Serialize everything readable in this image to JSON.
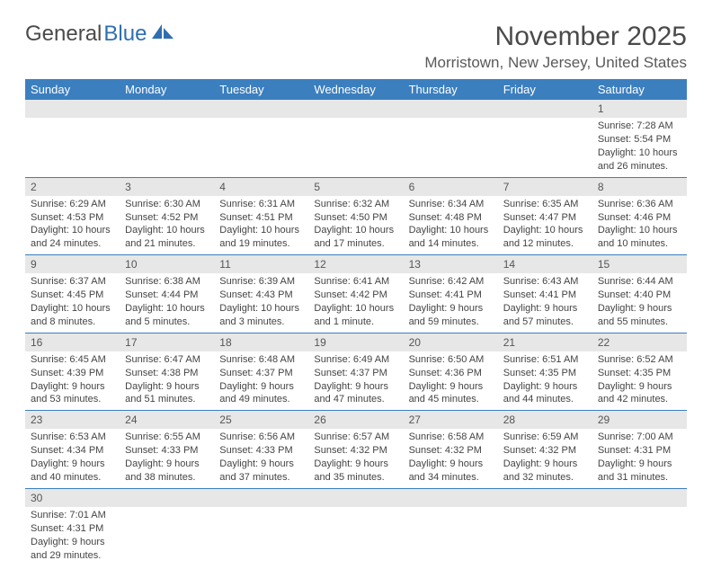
{
  "logo": {
    "text1": "General",
    "text2": "Blue"
  },
  "header": {
    "month": "November 2025",
    "location": "Morristown, New Jersey, United States"
  },
  "columns": [
    "Sunday",
    "Monday",
    "Tuesday",
    "Wednesday",
    "Thursday",
    "Friday",
    "Saturday"
  ],
  "colors": {
    "header_bg": "#3b7fbf",
    "header_fg": "#ffffff",
    "daynum_bg": "#e7e7e7",
    "border": "#3b7fbf",
    "text": "#444444",
    "logo_blue": "#2f6fb0"
  },
  "weeks": [
    [
      {
        "n": "",
        "sr": "",
        "ss": "",
        "dl": ""
      },
      {
        "n": "",
        "sr": "",
        "ss": "",
        "dl": ""
      },
      {
        "n": "",
        "sr": "",
        "ss": "",
        "dl": ""
      },
      {
        "n": "",
        "sr": "",
        "ss": "",
        "dl": ""
      },
      {
        "n": "",
        "sr": "",
        "ss": "",
        "dl": ""
      },
      {
        "n": "",
        "sr": "",
        "ss": "",
        "dl": ""
      },
      {
        "n": "1",
        "sr": "Sunrise: 7:28 AM",
        "ss": "Sunset: 5:54 PM",
        "dl": "Daylight: 10 hours and 26 minutes."
      }
    ],
    [
      {
        "n": "2",
        "sr": "Sunrise: 6:29 AM",
        "ss": "Sunset: 4:53 PM",
        "dl": "Daylight: 10 hours and 24 minutes."
      },
      {
        "n": "3",
        "sr": "Sunrise: 6:30 AM",
        "ss": "Sunset: 4:52 PM",
        "dl": "Daylight: 10 hours and 21 minutes."
      },
      {
        "n": "4",
        "sr": "Sunrise: 6:31 AM",
        "ss": "Sunset: 4:51 PM",
        "dl": "Daylight: 10 hours and 19 minutes."
      },
      {
        "n": "5",
        "sr": "Sunrise: 6:32 AM",
        "ss": "Sunset: 4:50 PM",
        "dl": "Daylight: 10 hours and 17 minutes."
      },
      {
        "n": "6",
        "sr": "Sunrise: 6:34 AM",
        "ss": "Sunset: 4:48 PM",
        "dl": "Daylight: 10 hours and 14 minutes."
      },
      {
        "n": "7",
        "sr": "Sunrise: 6:35 AM",
        "ss": "Sunset: 4:47 PM",
        "dl": "Daylight: 10 hours and 12 minutes."
      },
      {
        "n": "8",
        "sr": "Sunrise: 6:36 AM",
        "ss": "Sunset: 4:46 PM",
        "dl": "Daylight: 10 hours and 10 minutes."
      }
    ],
    [
      {
        "n": "9",
        "sr": "Sunrise: 6:37 AM",
        "ss": "Sunset: 4:45 PM",
        "dl": "Daylight: 10 hours and 8 minutes."
      },
      {
        "n": "10",
        "sr": "Sunrise: 6:38 AM",
        "ss": "Sunset: 4:44 PM",
        "dl": "Daylight: 10 hours and 5 minutes."
      },
      {
        "n": "11",
        "sr": "Sunrise: 6:39 AM",
        "ss": "Sunset: 4:43 PM",
        "dl": "Daylight: 10 hours and 3 minutes."
      },
      {
        "n": "12",
        "sr": "Sunrise: 6:41 AM",
        "ss": "Sunset: 4:42 PM",
        "dl": "Daylight: 10 hours and 1 minute."
      },
      {
        "n": "13",
        "sr": "Sunrise: 6:42 AM",
        "ss": "Sunset: 4:41 PM",
        "dl": "Daylight: 9 hours and 59 minutes."
      },
      {
        "n": "14",
        "sr": "Sunrise: 6:43 AM",
        "ss": "Sunset: 4:41 PM",
        "dl": "Daylight: 9 hours and 57 minutes."
      },
      {
        "n": "15",
        "sr": "Sunrise: 6:44 AM",
        "ss": "Sunset: 4:40 PM",
        "dl": "Daylight: 9 hours and 55 minutes."
      }
    ],
    [
      {
        "n": "16",
        "sr": "Sunrise: 6:45 AM",
        "ss": "Sunset: 4:39 PM",
        "dl": "Daylight: 9 hours and 53 minutes."
      },
      {
        "n": "17",
        "sr": "Sunrise: 6:47 AM",
        "ss": "Sunset: 4:38 PM",
        "dl": "Daylight: 9 hours and 51 minutes."
      },
      {
        "n": "18",
        "sr": "Sunrise: 6:48 AM",
        "ss": "Sunset: 4:37 PM",
        "dl": "Daylight: 9 hours and 49 minutes."
      },
      {
        "n": "19",
        "sr": "Sunrise: 6:49 AM",
        "ss": "Sunset: 4:37 PM",
        "dl": "Daylight: 9 hours and 47 minutes."
      },
      {
        "n": "20",
        "sr": "Sunrise: 6:50 AM",
        "ss": "Sunset: 4:36 PM",
        "dl": "Daylight: 9 hours and 45 minutes."
      },
      {
        "n": "21",
        "sr": "Sunrise: 6:51 AM",
        "ss": "Sunset: 4:35 PM",
        "dl": "Daylight: 9 hours and 44 minutes."
      },
      {
        "n": "22",
        "sr": "Sunrise: 6:52 AM",
        "ss": "Sunset: 4:35 PM",
        "dl": "Daylight: 9 hours and 42 minutes."
      }
    ],
    [
      {
        "n": "23",
        "sr": "Sunrise: 6:53 AM",
        "ss": "Sunset: 4:34 PM",
        "dl": "Daylight: 9 hours and 40 minutes."
      },
      {
        "n": "24",
        "sr": "Sunrise: 6:55 AM",
        "ss": "Sunset: 4:33 PM",
        "dl": "Daylight: 9 hours and 38 minutes."
      },
      {
        "n": "25",
        "sr": "Sunrise: 6:56 AM",
        "ss": "Sunset: 4:33 PM",
        "dl": "Daylight: 9 hours and 37 minutes."
      },
      {
        "n": "26",
        "sr": "Sunrise: 6:57 AM",
        "ss": "Sunset: 4:32 PM",
        "dl": "Daylight: 9 hours and 35 minutes."
      },
      {
        "n": "27",
        "sr": "Sunrise: 6:58 AM",
        "ss": "Sunset: 4:32 PM",
        "dl": "Daylight: 9 hours and 34 minutes."
      },
      {
        "n": "28",
        "sr": "Sunrise: 6:59 AM",
        "ss": "Sunset: 4:32 PM",
        "dl": "Daylight: 9 hours and 32 minutes."
      },
      {
        "n": "29",
        "sr": "Sunrise: 7:00 AM",
        "ss": "Sunset: 4:31 PM",
        "dl": "Daylight: 9 hours and 31 minutes."
      }
    ],
    [
      {
        "n": "30",
        "sr": "Sunrise: 7:01 AM",
        "ss": "Sunset: 4:31 PM",
        "dl": "Daylight: 9 hours and 29 minutes."
      },
      {
        "n": "",
        "sr": "",
        "ss": "",
        "dl": ""
      },
      {
        "n": "",
        "sr": "",
        "ss": "",
        "dl": ""
      },
      {
        "n": "",
        "sr": "",
        "ss": "",
        "dl": ""
      },
      {
        "n": "",
        "sr": "",
        "ss": "",
        "dl": ""
      },
      {
        "n": "",
        "sr": "",
        "ss": "",
        "dl": ""
      },
      {
        "n": "",
        "sr": "",
        "ss": "",
        "dl": ""
      }
    ]
  ]
}
